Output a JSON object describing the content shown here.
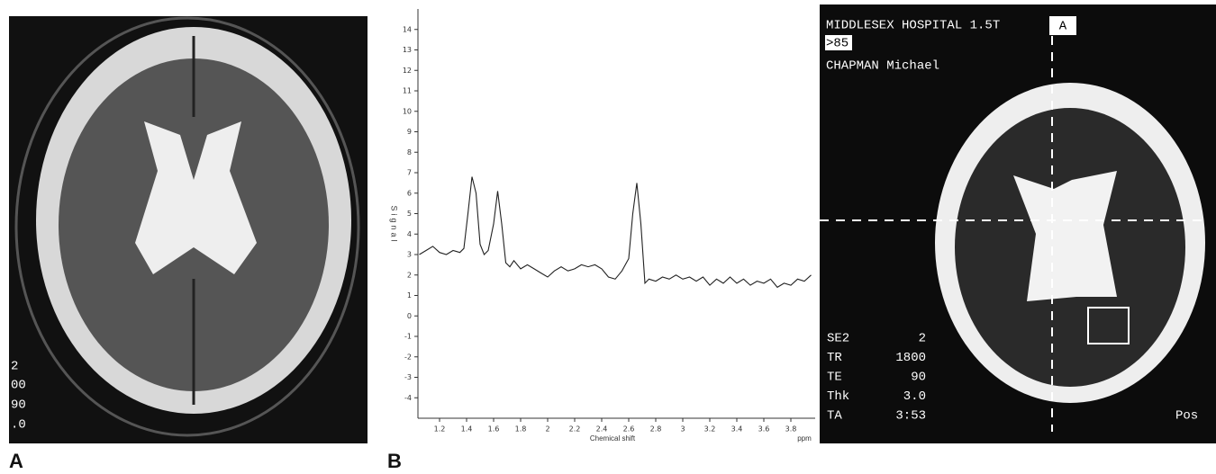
{
  "panel_a": {
    "overlay_text": [
      "2",
      "00",
      "90",
      ".0"
    ],
    "label": "A"
  },
  "panel_b": {
    "label": "B"
  },
  "chart_data": {
    "type": "line",
    "x_label": "Chemical shift",
    "x_unit": "ppm",
    "y_label": "Signal",
    "x": [
      1.05,
      1.1,
      1.15,
      1.2,
      1.25,
      1.3,
      1.35,
      1.38,
      1.41,
      1.44,
      1.47,
      1.5,
      1.53,
      1.56,
      1.6,
      1.63,
      1.66,
      1.69,
      1.72,
      1.75,
      1.8,
      1.85,
      1.9,
      1.95,
      2.0,
      2.05,
      2.1,
      2.15,
      2.2,
      2.25,
      2.3,
      2.35,
      2.4,
      2.45,
      2.5,
      2.55,
      2.6,
      2.63,
      2.66,
      2.69,
      2.72,
      2.75,
      2.8,
      2.85,
      2.9,
      2.95,
      3.0,
      3.05,
      3.1,
      3.15,
      3.2,
      3.25,
      3.3,
      3.35,
      3.4,
      3.45,
      3.5,
      3.55,
      3.6,
      3.65,
      3.7,
      3.75,
      3.8,
      3.85,
      3.9,
      3.95
    ],
    "series": [
      {
        "color": "#222222",
        "values": [
          3.0,
          3.2,
          3.4,
          3.1,
          3.0,
          3.2,
          3.1,
          3.3,
          5.0,
          6.8,
          6.0,
          3.5,
          3.0,
          3.2,
          4.5,
          6.1,
          4.5,
          2.6,
          2.4,
          2.7,
          2.3,
          2.5,
          2.3,
          2.1,
          1.9,
          2.2,
          2.4,
          2.2,
          2.3,
          2.5,
          2.4,
          2.5,
          2.3,
          1.9,
          1.8,
          2.2,
          2.8,
          5.0,
          6.5,
          4.5,
          1.6,
          1.8,
          1.7,
          1.9,
          1.8,
          2.0,
          1.8,
          1.9,
          1.7,
          1.9,
          1.5,
          1.8,
          1.6,
          1.9,
          1.6,
          1.8,
          1.5,
          1.7,
          1.6,
          1.8,
          1.4,
          1.6,
          1.5,
          1.8,
          1.7,
          2.0
        ]
      }
    ],
    "xlim": [
      1.04,
      3.98
    ],
    "ylim": [
      -5,
      15
    ],
    "xticks": [
      1.2,
      1.4,
      1.6,
      1.8,
      2.0,
      2.2,
      2.4,
      2.6,
      2.8,
      3.0,
      3.2,
      3.4,
      3.6,
      3.8
    ],
    "yticks": [
      -4,
      -3,
      -2,
      -1,
      0,
      1,
      2,
      3,
      4,
      5,
      6,
      7,
      8,
      9,
      10,
      11,
      12,
      13,
      14
    ],
    "grid": false
  },
  "panel_c": {
    "header": "MIDDLESEX HOSPITAL 1.5T",
    "badge": "A",
    "id": ">85",
    "patient": "CHAPMAN Michael",
    "params": [
      [
        "SE2",
        "2"
      ],
      [
        "TR",
        "1800"
      ],
      [
        "TE",
        "90"
      ],
      [
        "Thk",
        "3.0"
      ],
      [
        "TA",
        "3:53"
      ]
    ],
    "orientation": "Pos"
  }
}
